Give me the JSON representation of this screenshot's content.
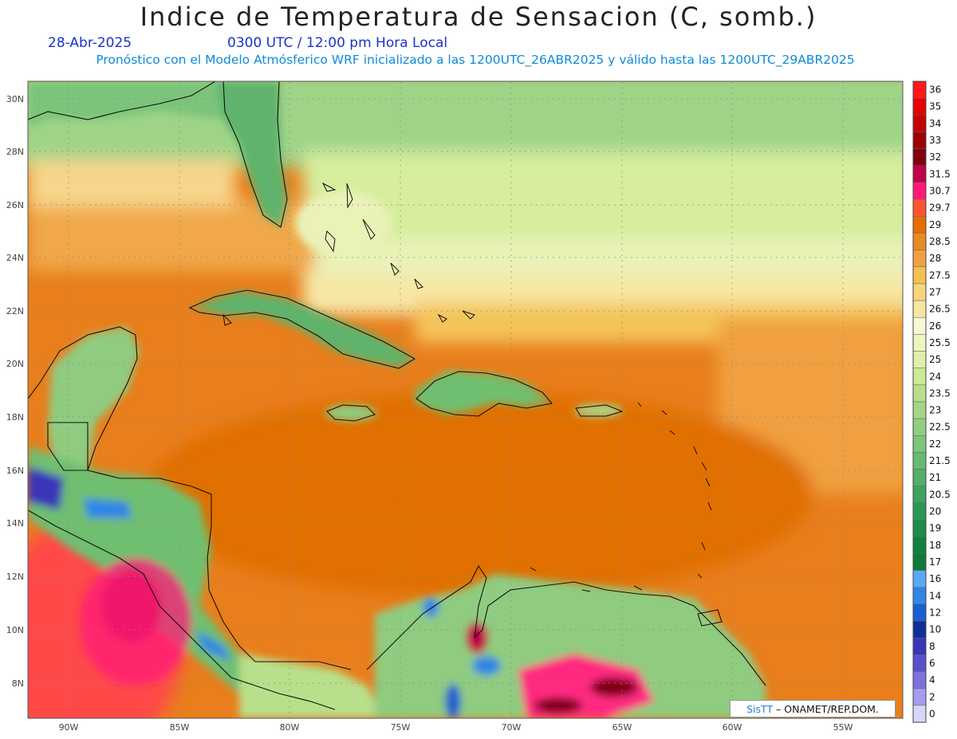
{
  "header": {
    "title": "Indice de Temperatura de Sensacion (C, somb.)",
    "date": "28-Abr-2025",
    "valid_time": "0300 UTC / 12:00 pm Hora Local",
    "subtitle": "Pronóstico con el Modelo Atmósferico WRF inicializado a las 1200UTC_26ABR2025 y válido hasta las  1200UTC_29ABR2025"
  },
  "map": {
    "variable": "Indice de Temperatura de Sensacion",
    "units": "C",
    "lon_range": [
      -92,
      -52.5
    ],
    "lat_range": [
      6.5,
      30.8
    ],
    "lon_ticks": [
      "90W",
      "85W",
      "80W",
      "75W",
      "70W",
      "65W",
      "60W",
      "55W"
    ],
    "lat_ticks": [
      "8N",
      "10N",
      "12N",
      "14N",
      "16N",
      "18N",
      "20N",
      "22N",
      "24N",
      "26N",
      "28N",
      "30N"
    ]
  },
  "colorbar": {
    "levels": [
      "36",
      "35",
      "34",
      "33",
      "32",
      "31.5",
      "30.7",
      "29.7",
      "29",
      "28.5",
      "28",
      "27.5",
      "27",
      "26.5",
      "26",
      "25.5",
      "25",
      "24",
      "23.5",
      "23",
      "22.5",
      "22",
      "21.5",
      "21",
      "20.5",
      "20",
      "19",
      "18",
      "17",
      "16",
      "14",
      "12",
      "10",
      "8",
      "6",
      "4",
      "2",
      "0"
    ],
    "colors": [
      "#ff1a1a",
      "#e60000",
      "#c40000",
      "#9e0000",
      "#800010",
      "#c0004a",
      "#ff1a78",
      "#ff5533",
      "#e66e00",
      "#ec8a22",
      "#f0a040",
      "#f6c050",
      "#f8d57a",
      "#f7e6a2",
      "#f8f5d8",
      "#eef5c0",
      "#dff0a8",
      "#cce995",
      "#b8e08a",
      "#a6d685",
      "#93ce80",
      "#7ec57a",
      "#68bb74",
      "#52b06b",
      "#3ea35f",
      "#2a9855",
      "#1b8c4a",
      "#108040",
      "#0f7a3a",
      "#5aa9f5",
      "#2f86e6",
      "#1a5fd0",
      "#0c2f99",
      "#3a34b8",
      "#5a50cc",
      "#7c72dc",
      "#a49cee",
      "#d8d6f8"
    ]
  },
  "credit": {
    "brand": "SisTT",
    "text": "– ONAMET/REP.DOM."
  }
}
